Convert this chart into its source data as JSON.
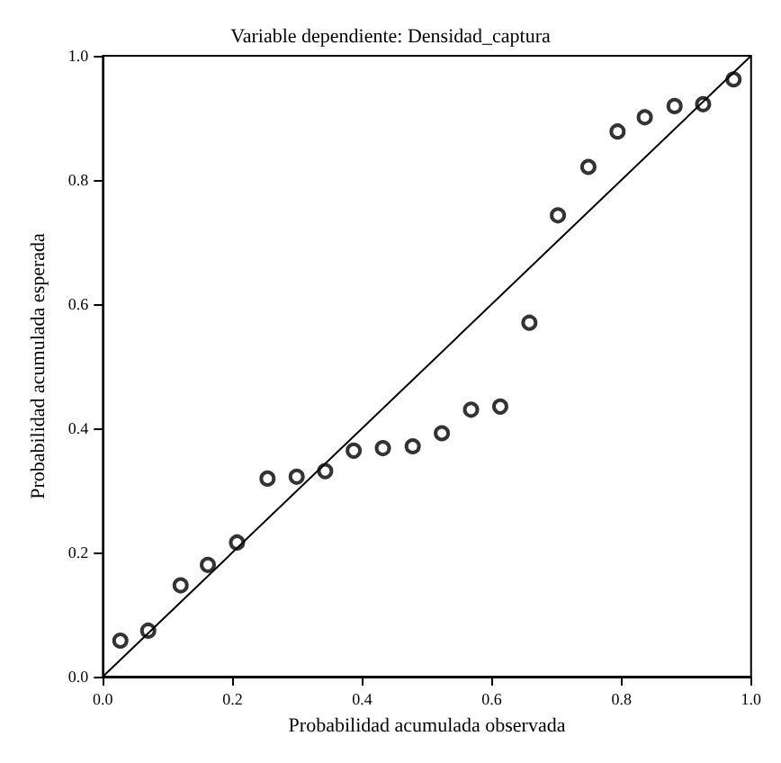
{
  "chart_data": {
    "type": "scatter",
    "title": "Variable dependiente: Densidad_captura",
    "xlabel": "Probabilidad acumulada observada",
    "ylabel": "Probabilidad acumulada esperada",
    "xlim": [
      0,
      1
    ],
    "ylim": [
      0,
      1
    ],
    "xticks": [
      {
        "value": 0,
        "label": "0.0"
      },
      {
        "value": 0.2,
        "label": "0.2"
      },
      {
        "value": 0.4,
        "label": "0.4"
      },
      {
        "value": 0.6,
        "label": "0.6"
      },
      {
        "value": 0.8,
        "label": "0.8"
      },
      {
        "value": 1,
        "label": "1.0"
      }
    ],
    "yticks": [
      {
        "value": 0,
        "label": "0.0"
      },
      {
        "value": 0.2,
        "label": "0.2"
      },
      {
        "value": 0.4,
        "label": "0.4"
      },
      {
        "value": 0.6,
        "label": "0.6"
      },
      {
        "value": 0.8,
        "label": "0.8"
      },
      {
        "value": 1,
        "label": "1.0"
      }
    ],
    "grid": false,
    "series": [
      {
        "color": "#000000",
        "marker": "circle",
        "x": [
          0.027,
          0.07,
          0.12,
          0.162,
          0.207,
          0.254,
          0.299,
          0.343,
          0.387,
          0.432,
          0.478,
          0.523,
          0.568,
          0.613,
          0.658,
          0.702,
          0.749,
          0.794,
          0.836,
          0.882,
          0.926,
          0.973
        ],
        "values": [
          0.058,
          0.074,
          0.147,
          0.18,
          0.216,
          0.319,
          0.322,
          0.331,
          0.364,
          0.368,
          0.371,
          0.392,
          0.43,
          0.435,
          0.57,
          0.743,
          0.821,
          0.878,
          0.901,
          0.919,
          0.922,
          0.962
        ]
      },
      {
        "type": "line",
        "color": "#000000",
        "marker": "none",
        "line_style": "solid",
        "x": [
          0,
          1
        ],
        "values": [
          0,
          1
        ]
      }
    ]
  }
}
